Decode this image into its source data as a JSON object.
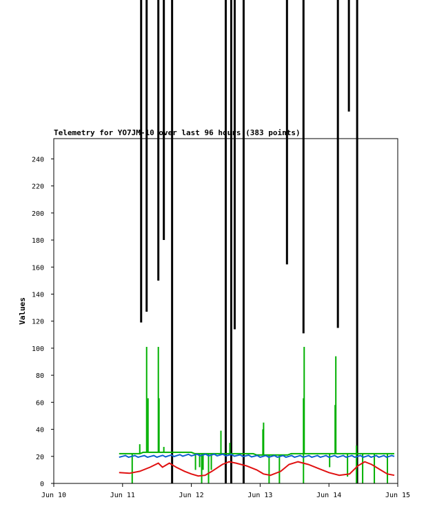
{
  "chart_data": {
    "type": "line",
    "title": "Telemetry for YO7JM-10 over last 96 hours (383 points)",
    "ylabel": "Values",
    "xlabel": "",
    "x_ticks": [
      "Jun 10",
      "Jun 11",
      "Jun 12",
      "Jun 13",
      "Jun 14",
      "Jun 15"
    ],
    "y_ticks": [
      0,
      20,
      40,
      60,
      80,
      100,
      120,
      140,
      160,
      180,
      200,
      220,
      240
    ],
    "xlim_days": [
      10,
      15
    ],
    "ylim": [
      0,
      255
    ],
    "grid": false,
    "colors": {
      "black": "#000000",
      "green": "#00b000",
      "blue": "#1060d0",
      "red": "#e01010"
    },
    "series": [
      {
        "color": "black",
        "spikes": [
          {
            "day": 11.27,
            "low": 119
          },
          {
            "day": 11.35,
            "low": 127
          },
          {
            "day": 11.52,
            "low": 150
          },
          {
            "day": 11.6,
            "low": 180
          },
          {
            "day": 11.72,
            "low": 0
          },
          {
            "day": 12.5,
            "low": 0
          },
          {
            "day": 12.58,
            "low": 0
          },
          {
            "day": 12.63,
            "low": 114
          },
          {
            "day": 12.76,
            "low": 0
          },
          {
            "day": 13.39,
            "low": 162
          },
          {
            "day": 13.63,
            "low": 111
          },
          {
            "day": 14.13,
            "low": 115
          },
          {
            "day": 14.29,
            "low": 275
          },
          {
            "day": 14.41,
            "low": 0
          }
        ]
      },
      {
        "color": "green",
        "baseline": [
          [
            10.95,
            22
          ],
          [
            11.25,
            22
          ],
          [
            11.3,
            23
          ],
          [
            12.0,
            23
          ],
          [
            12.05,
            22
          ],
          [
            12.9,
            22
          ],
          [
            12.95,
            21
          ],
          [
            13.4,
            21
          ],
          [
            13.45,
            22
          ],
          [
            14.95,
            22
          ]
        ],
        "spikes": [
          {
            "day": 11.25,
            "y": 29
          },
          {
            "day": 11.35,
            "y": 101
          },
          {
            "day": 11.37,
            "y": 63
          },
          {
            "day": 11.52,
            "y": 101
          },
          {
            "day": 11.53,
            "y": 63
          },
          {
            "day": 11.6,
            "y": 27
          },
          {
            "day": 12.43,
            "y": 39
          },
          {
            "day": 12.56,
            "y": 30
          },
          {
            "day": 13.05,
            "y": 45
          },
          {
            "day": 13.04,
            "y": 40
          },
          {
            "day": 13.64,
            "y": 101
          },
          {
            "day": 13.63,
            "y": 63
          },
          {
            "day": 14.1,
            "y": 94
          },
          {
            "day": 14.09,
            "y": 58
          },
          {
            "day": 14.4,
            "y": 28
          }
        ],
        "dips": [
          {
            "day": 11.14,
            "y": 0
          },
          {
            "day": 12.06,
            "y": 10
          },
          {
            "day": 12.12,
            "y": 12
          },
          {
            "day": 12.15,
            "y": 0
          },
          {
            "day": 12.17,
            "y": 10
          },
          {
            "day": 12.25,
            "y": 0
          },
          {
            "day": 12.29,
            "y": 10
          },
          {
            "day": 13.13,
            "y": 0
          },
          {
            "day": 13.28,
            "y": 0
          },
          {
            "day": 13.63,
            "y": 0
          },
          {
            "day": 14.01,
            "y": 12
          },
          {
            "day": 14.27,
            "y": 5
          },
          {
            "day": 14.4,
            "y": 0
          },
          {
            "day": 14.49,
            "y": 0
          },
          {
            "day": 14.66,
            "y": 0
          },
          {
            "day": 14.85,
            "y": 0
          }
        ]
      },
      {
        "color": "blue",
        "points": [
          [
            10.95,
            20
          ],
          [
            11.5,
            20
          ],
          [
            12.0,
            21
          ],
          [
            12.5,
            21
          ],
          [
            13.0,
            20
          ],
          [
            13.5,
            20
          ],
          [
            14.0,
            20
          ],
          [
            14.5,
            20
          ],
          [
            14.95,
            20
          ]
        ]
      },
      {
        "color": "red",
        "points": [
          [
            10.95,
            8
          ],
          [
            11.1,
            7.5
          ],
          [
            11.25,
            9
          ],
          [
            11.4,
            12
          ],
          [
            11.52,
            15
          ],
          [
            11.58,
            12
          ],
          [
            11.68,
            15
          ],
          [
            11.78,
            12
          ],
          [
            11.9,
            9
          ],
          [
            12.0,
            7
          ],
          [
            12.1,
            5.5
          ],
          [
            12.2,
            6
          ],
          [
            12.3,
            9
          ],
          [
            12.45,
            14
          ],
          [
            12.55,
            16
          ],
          [
            12.65,
            15
          ],
          [
            12.8,
            13
          ],
          [
            12.95,
            10
          ],
          [
            13.05,
            7
          ],
          [
            13.15,
            6
          ],
          [
            13.3,
            9
          ],
          [
            13.42,
            14
          ],
          [
            13.55,
            16
          ],
          [
            13.7,
            14
          ],
          [
            13.85,
            11
          ],
          [
            14.0,
            8
          ],
          [
            14.15,
            6
          ],
          [
            14.3,
            7
          ],
          [
            14.42,
            13
          ],
          [
            14.52,
            16
          ],
          [
            14.62,
            14
          ],
          [
            14.75,
            10
          ],
          [
            14.85,
            7
          ],
          [
            14.95,
            6
          ]
        ]
      }
    ]
  }
}
